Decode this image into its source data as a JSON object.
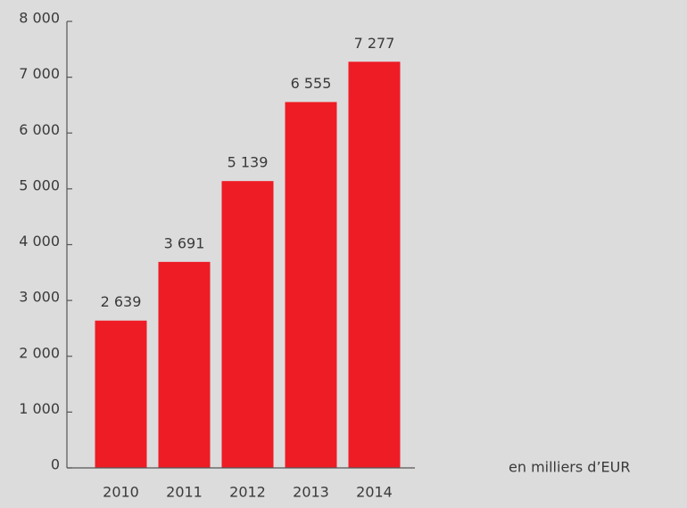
{
  "chart_data": {
    "type": "bar",
    "categories": [
      "2010",
      "2011",
      "2012",
      "2013",
      "2014"
    ],
    "values": [
      2639,
      3691,
      5139,
      6555,
      7277
    ],
    "value_labels": [
      "2 639",
      "3 691",
      "5 139",
      "6 555",
      "7 277"
    ],
    "color": "#ee1c25",
    "ylim": [
      0,
      8000
    ],
    "yticks": [
      0,
      {
        "value": 1000,
        "label": "1 000"
      },
      {
        "value": 2000,
        "label": "2 000"
      },
      {
        "value": 3000,
        "label": "3 000"
      },
      {
        "value": 4000,
        "label": "4 000"
      },
      {
        "value": 5000,
        "label": "5 000"
      },
      {
        "value": 6000,
        "label": "6 000"
      },
      {
        "value": 7000,
        "label": "7 000"
      },
      {
        "value": 8000,
        "label": "8 000"
      }
    ],
    "annotation": "en milliers d’EUR"
  }
}
